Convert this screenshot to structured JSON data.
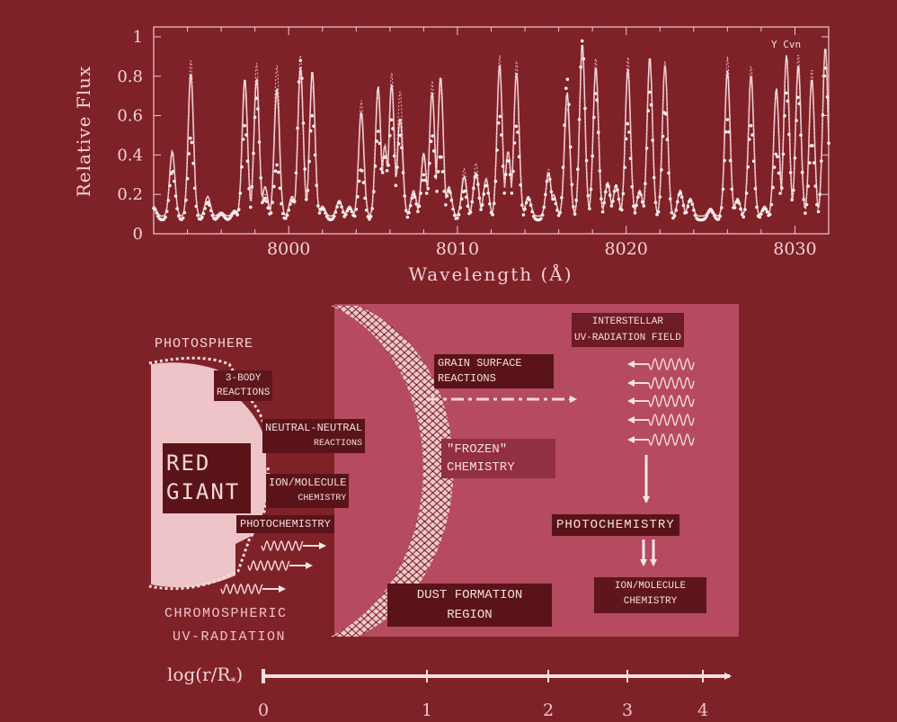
{
  "chart_data": {
    "type": "line",
    "title": "",
    "legend": "Y Cvn",
    "xlabel": "Wavelength (Å)",
    "ylabel": "Relative Flux",
    "xlim": [
      7992,
      8032
    ],
    "ylim": [
      0,
      1.05
    ],
    "x_ticks": [
      "8000",
      "8010",
      "8020",
      "8030"
    ],
    "x_tick_values": [
      8000,
      8010,
      8020,
      8030
    ],
    "y_ticks": [
      "0",
      "0.2",
      "0.4",
      "0.6",
      "0.8",
      "1"
    ],
    "y_tick_values": [
      0,
      0.2,
      0.4,
      0.6,
      0.8,
      1
    ],
    "series": [
      {
        "style": "solid model",
        "points": [
          [
            7992,
            0.14
          ],
          [
            7993.1,
            0.42
          ],
          [
            7994.2,
            0.82
          ],
          [
            7995.2,
            0.19
          ],
          [
            7996.0,
            0.11
          ],
          [
            7996.8,
            0.12
          ],
          [
            7997.4,
            0.79
          ],
          [
            7998.1,
            0.79
          ],
          [
            7998.6,
            0.24
          ],
          [
            7999.3,
            0.74
          ],
          [
            8000.2,
            0.19
          ],
          [
            8000.7,
            0.85
          ],
          [
            8001.4,
            0.83
          ],
          [
            8002.0,
            0.14
          ],
          [
            8003.0,
            0.17
          ],
          [
            8003.6,
            0.14
          ],
          [
            8004.3,
            0.62
          ],
          [
            8005.3,
            0.75
          ],
          [
            8005.7,
            0.45
          ],
          [
            8006.1,
            0.76
          ],
          [
            8006.6,
            0.59
          ],
          [
            8007.4,
            0.22
          ],
          [
            8008.0,
            0.41
          ],
          [
            8008.5,
            0.72
          ],
          [
            8009.0,
            0.8
          ],
          [
            8009.5,
            0.24
          ],
          [
            8010.4,
            0.29
          ],
          [
            8011.1,
            0.31
          ],
          [
            8011.7,
            0.28
          ],
          [
            8012.5,
            0.86
          ],
          [
            8013.0,
            0.42
          ],
          [
            8013.5,
            0.82
          ],
          [
            8014.2,
            0.19
          ],
          [
            8015.4,
            0.31
          ],
          [
            8015.7,
            0.2
          ],
          [
            8016.5,
            0.72
          ],
          [
            8017.4,
            0.97
          ],
          [
            8018.2,
            0.85
          ],
          [
            8018.9,
            0.26
          ],
          [
            8019.4,
            0.25
          ],
          [
            8020.1,
            0.84
          ],
          [
            8020.8,
            0.22
          ],
          [
            8021.4,
            0.9
          ],
          [
            8022.3,
            0.86
          ],
          [
            8023.2,
            0.22
          ],
          [
            8023.8,
            0.18
          ],
          [
            8025.0,
            0.13
          ],
          [
            8026.0,
            0.83
          ],
          [
            8026.6,
            0.18
          ],
          [
            8027.4,
            0.81
          ],
          [
            8028.2,
            0.14
          ],
          [
            8028.9,
            0.74
          ],
          [
            8029.5,
            0.91
          ],
          [
            8030.2,
            0.86
          ],
          [
            8031.0,
            0.79
          ],
          [
            8031.8,
            0.95
          ]
        ]
      },
      {
        "style": "dotted model",
        "points": [
          [
            7992,
            0.14
          ],
          [
            7993.1,
            0.4
          ],
          [
            7994.2,
            0.89
          ],
          [
            7995.2,
            0.19
          ],
          [
            7996.0,
            0.11
          ],
          [
            7996.8,
            0.12
          ],
          [
            7997.4,
            0.72
          ],
          [
            7998.1,
            0.87
          ],
          [
            7998.6,
            0.2
          ],
          [
            7999.3,
            0.86
          ],
          [
            8000.2,
            0.18
          ],
          [
            8000.7,
            0.91
          ],
          [
            8001.4,
            0.76
          ],
          [
            8002.0,
            0.14
          ],
          [
            8003.0,
            0.17
          ],
          [
            8003.6,
            0.14
          ],
          [
            8004.3,
            0.68
          ],
          [
            8005.3,
            0.7
          ],
          [
            8005.7,
            0.45
          ],
          [
            8006.1,
            0.82
          ],
          [
            8006.6,
            0.73
          ],
          [
            8007.4,
            0.22
          ],
          [
            8008.0,
            0.38
          ],
          [
            8008.5,
            0.78
          ],
          [
            8009.0,
            0.74
          ],
          [
            8009.5,
            0.24
          ],
          [
            8010.4,
            0.33
          ],
          [
            8011.1,
            0.36
          ],
          [
            8011.7,
            0.28
          ],
          [
            8012.5,
            0.91
          ],
          [
            8013.0,
            0.42
          ],
          [
            8013.5,
            0.88
          ],
          [
            8014.2,
            0.19
          ],
          [
            8015.4,
            0.33
          ],
          [
            8015.7,
            0.2
          ],
          [
            8016.5,
            0.64
          ],
          [
            8017.4,
            0.92
          ],
          [
            8018.2,
            0.9
          ],
          [
            8018.9,
            0.24
          ],
          [
            8019.4,
            0.25
          ],
          [
            8020.1,
            0.9
          ],
          [
            8020.8,
            0.22
          ],
          [
            8021.4,
            0.86
          ],
          [
            8022.3,
            0.88
          ],
          [
            8023.2,
            0.22
          ],
          [
            8023.8,
            0.18
          ],
          [
            8025.0,
            0.13
          ],
          [
            8026.0,
            0.9
          ],
          [
            8026.6,
            0.18
          ],
          [
            8027.4,
            0.86
          ],
          [
            8028.2,
            0.14
          ],
          [
            8028.9,
            0.7
          ],
          [
            8029.5,
            0.88
          ],
          [
            8030.2,
            0.92
          ],
          [
            8031.0,
            0.84
          ],
          [
            8031.8,
            0.93
          ]
        ]
      },
      {
        "style": "observed points",
        "points": [
          [
            7992,
            0.13
          ],
          [
            7993.1,
            0.32
          ],
          [
            7994.2,
            0.49
          ],
          [
            7995.2,
            0.16
          ],
          [
            7996.0,
            0.1
          ],
          [
            7996.8,
            0.11
          ],
          [
            7997.4,
            0.55
          ],
          [
            7998.1,
            0.69
          ],
          [
            7998.6,
            0.18
          ],
          [
            7999.3,
            0.35
          ],
          [
            8000.2,
            0.17
          ],
          [
            8000.7,
            0.88
          ],
          [
            8001.4,
            0.6
          ],
          [
            8002.0,
            0.13
          ],
          [
            8003.0,
            0.16
          ],
          [
            8003.6,
            0.13
          ],
          [
            8004.3,
            0.33
          ],
          [
            8005.3,
            0.52
          ],
          [
            8005.7,
            0.4
          ],
          [
            8006.1,
            0.58
          ],
          [
            8006.6,
            0.5
          ],
          [
            8007.4,
            0.2
          ],
          [
            8008.0,
            0.3
          ],
          [
            8008.5,
            0.5
          ],
          [
            8009.0,
            0.4
          ],
          [
            8009.5,
            0.22
          ],
          [
            8010.4,
            0.22
          ],
          [
            8011.1,
            0.3
          ],
          [
            8011.7,
            0.25
          ],
          [
            8012.5,
            0.6
          ],
          [
            8013.0,
            0.38
          ],
          [
            8013.5,
            0.55
          ],
          [
            8014.2,
            0.18
          ],
          [
            8015.4,
            0.3
          ],
          [
            8015.7,
            0.18
          ],
          [
            8016.5,
            0.79
          ],
          [
            8017.4,
            0.98
          ],
          [
            8018.2,
            0.72
          ],
          [
            8018.9,
            0.25
          ],
          [
            8019.4,
            0.24
          ],
          [
            8020.1,
            0.56
          ],
          [
            8020.8,
            0.21
          ],
          [
            8021.4,
            0.72
          ],
          [
            8022.3,
            0.63
          ],
          [
            8023.2,
            0.21
          ],
          [
            8023.8,
            0.17
          ],
          [
            8025.0,
            0.12
          ],
          [
            8026.0,
            0.58
          ],
          [
            8026.6,
            0.17
          ],
          [
            8027.4,
            0.55
          ],
          [
            8028.2,
            0.13
          ],
          [
            8028.9,
            0.41
          ],
          [
            8029.5,
            0.72
          ],
          [
            8030.2,
            0.7
          ],
          [
            8031.0,
            0.46
          ],
          [
            8031.8,
            0.85
          ]
        ]
      }
    ]
  },
  "diagram": {
    "photosphere": "PHOTOSPHERE",
    "red": "RED",
    "giant": "GIANT",
    "three_body_1": "3-BODY",
    "three_body_2": "REACTIONS",
    "nn_1": "NEUTRAL-NEUTRAL",
    "nn_2": "REACTIONS",
    "im_1": "ION/MOLECULE",
    "im_2": "CHEMISTRY",
    "photochem_inner": "PHOTOCHEMISTRY",
    "chromo_1": "CHROMOSPHERIC",
    "chromo_2": "UV-RADIATION",
    "grain_1": "GRAIN  SURFACE",
    "grain_2": "REACTIONS",
    "frozen_1": "\"FROZEN\"",
    "frozen_2": "CHEMISTRY",
    "dust_1": "DUST FORMATION",
    "dust_2": "REGION",
    "isrf_1": "INTERSTELLAR",
    "isrf_2": "UV-RADIATION   FIELD",
    "photochem_outer": "PHOTOCHEMISTRY",
    "im_outer_1": "ION/MOLECULE",
    "im_outer_2": "CHEMISTRY"
  },
  "axis": {
    "label": "log(r/R",
    "label_sub": "*",
    "label_close": ")",
    "ticks": [
      "0",
      "1",
      "2",
      "3",
      "4"
    ],
    "tick_values": [
      0,
      1,
      2,
      3,
      4
    ],
    "positions_hint": [
      0,
      1,
      2,
      3,
      4
    ]
  }
}
